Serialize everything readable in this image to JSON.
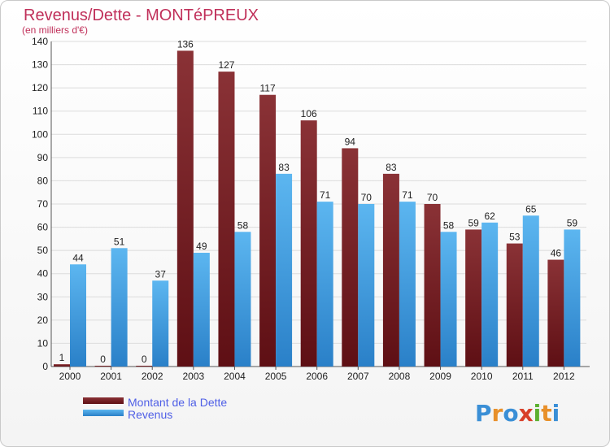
{
  "header": {
    "title": "Revenus/Dette - MONTéPREUX",
    "subtitle": "(en milliers d'€)"
  },
  "chart_data": {
    "type": "bar",
    "title": "Revenus/Dette - MONTéPREUX",
    "ylabel": "(en milliers d'€)",
    "xlabel": "",
    "ylim": [
      0,
      140
    ],
    "yticks": [
      0,
      10,
      20,
      30,
      40,
      50,
      60,
      70,
      80,
      90,
      100,
      110,
      120,
      130,
      140
    ],
    "grid": true,
    "legend_position": "bottom-left",
    "categories": [
      "2000",
      "2001",
      "2002",
      "2003",
      "2004",
      "2005",
      "2006",
      "2007",
      "2008",
      "2009",
      "2010",
      "2011",
      "2012"
    ],
    "series": [
      {
        "name": "Montant de la Dette",
        "color": "#7a2a30",
        "values": [
          1,
          0,
          0,
          136,
          127,
          117,
          106,
          94,
          83,
          70,
          59,
          53,
          46
        ]
      },
      {
        "name": "Revenus",
        "color": "#4aa8e8",
        "values": [
          44,
          51,
          37,
          49,
          58,
          83,
          71,
          70,
          71,
          58,
          62,
          65,
          59
        ]
      }
    ]
  },
  "logo": {
    "letters": [
      "P",
      "r",
      "o",
      "x",
      "i",
      "t",
      "i"
    ],
    "colors": [
      "#3a8fd6",
      "#e8902a",
      "#3a8fd6",
      "#d8402a",
      "#5cb030",
      "#e8902a",
      "#3a8fd6"
    ]
  }
}
